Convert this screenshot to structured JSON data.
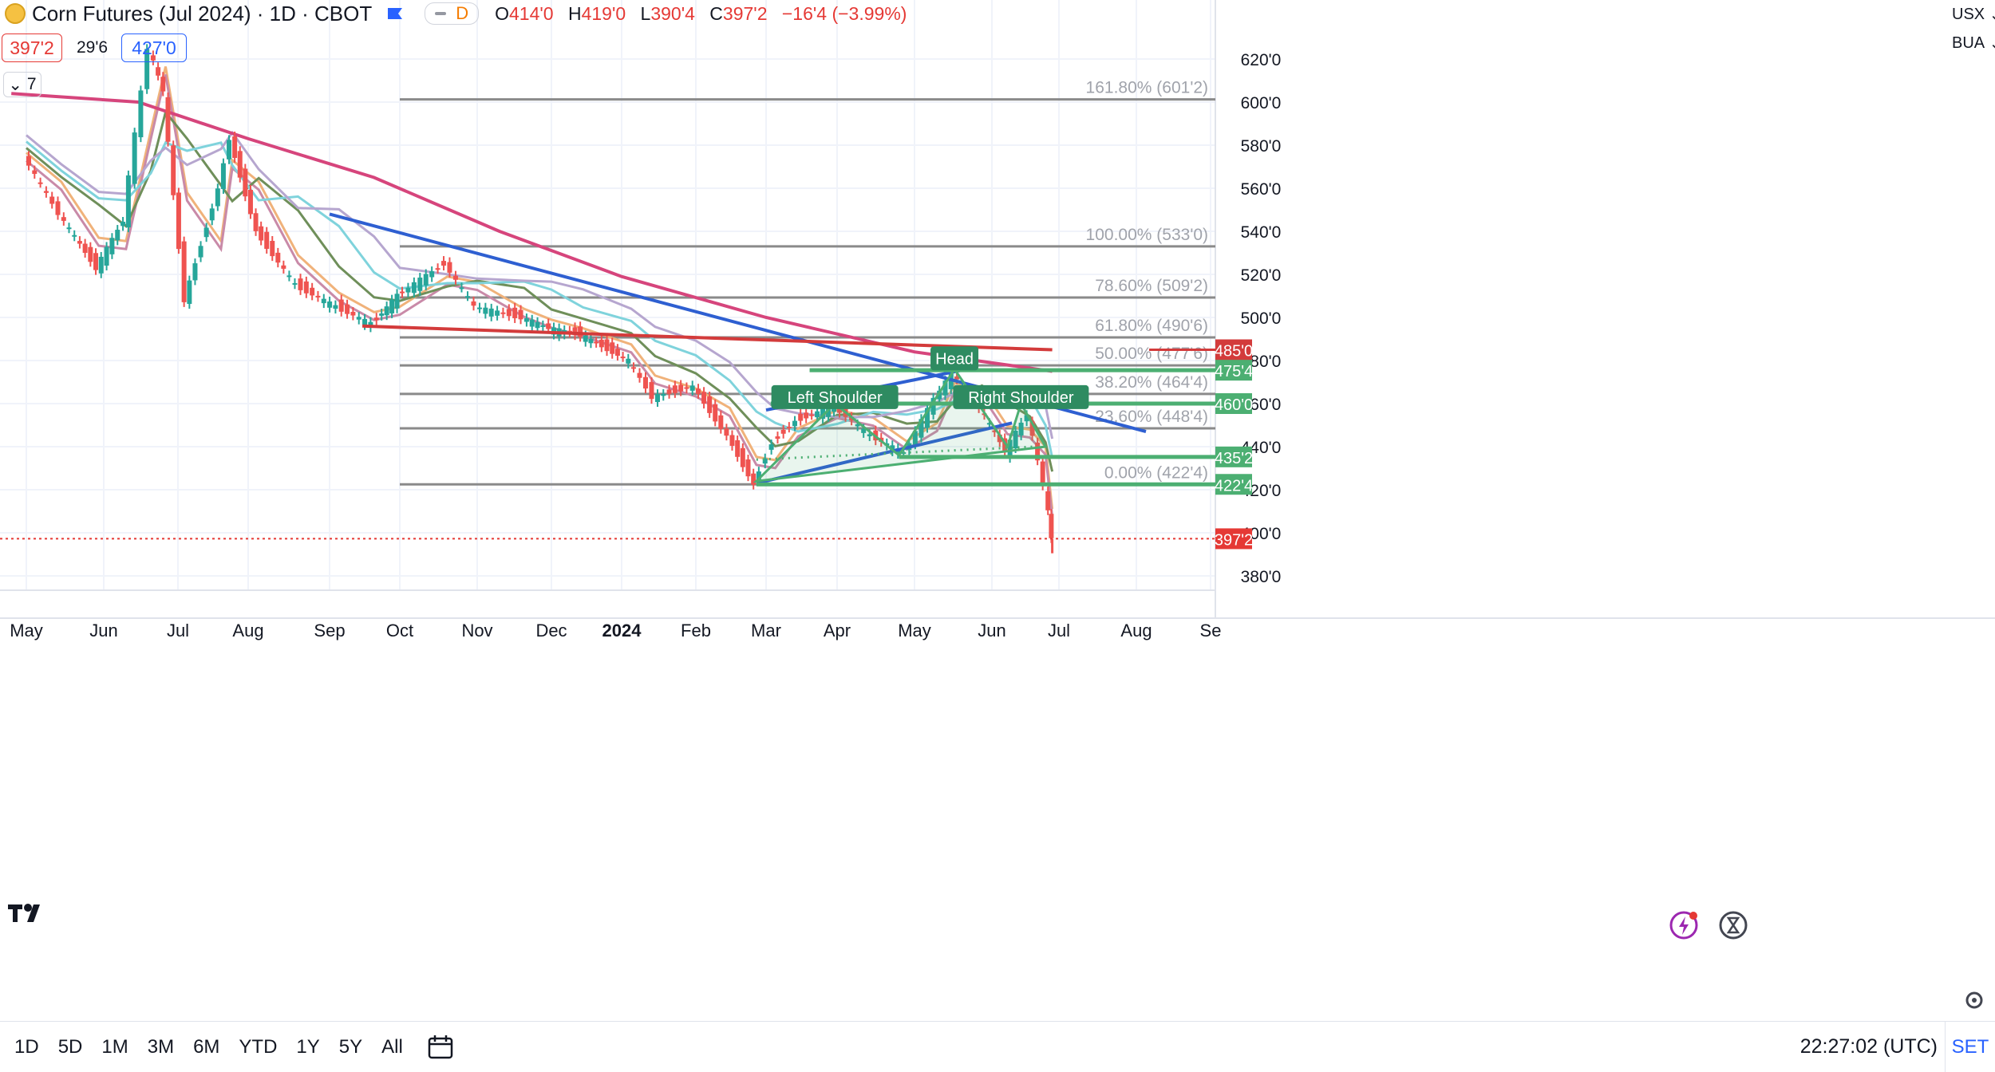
{
  "header": {
    "title": "Corn Futures (Jul 2024) · 1D · CBOT",
    "delay_badge": "D",
    "ohlc": {
      "o_label": "O",
      "o": "414'0",
      "h_label": "H",
      "h": "419'0",
      "l_label": "L",
      "l": "390'4",
      "c_label": "C",
      "c": "397'2",
      "chg": "−16'4 (−3.99%)"
    },
    "sell_price": "397'2",
    "spread": "29'6",
    "buy_price": "427'0",
    "indicators_count": "7"
  },
  "right_toolbar": {
    "currency": "USX",
    "unit": "BUA"
  },
  "bottom_bar": {
    "ranges": [
      "1D",
      "5D",
      "1M",
      "3M",
      "6M",
      "YTD",
      "1Y",
      "5Y",
      "All"
    ],
    "clock": "22:27:02 (UTC)",
    "session": "SET"
  },
  "colors": {
    "up": "#26a69a",
    "down": "#ef5350",
    "ma200": "#d6457c",
    "trend_blue": "#2e5fd1",
    "trend_red": "#d33b3b",
    "fib": "#8a8a8a",
    "pattern": "#4caf72",
    "last_price": "#e53935"
  },
  "chart_data": {
    "type": "candlestick",
    "symbol": "Corn Futures (Jul 2024)",
    "timeframe": "1D",
    "exchange": "CBOT",
    "x_ticks": [
      "May",
      "Jun",
      "Jul",
      "Aug",
      "Sep",
      "Oct",
      "Nov",
      "Dec",
      "2024",
      "Feb",
      "Mar",
      "Apr",
      "May",
      "Jun",
      "Jul",
      "Aug",
      "Se"
    ],
    "y_ticks": [
      "620'0",
      "600'0",
      "580'0",
      "560'0",
      "540'0",
      "520'0",
      "500'0",
      "480'0",
      "460'0",
      "440'0",
      "420'0",
      "400'0",
      "380'0"
    ],
    "ylim": [
      370,
      640
    ],
    "price_series": [
      {
        "date": "2023-05-01",
        "close": 575
      },
      {
        "date": "2023-05-15",
        "close": 548
      },
      {
        "date": "2023-05-30",
        "close": 523
      },
      {
        "date": "2023-06-10",
        "close": 545
      },
      {
        "date": "2023-06-20",
        "close": 625
      },
      {
        "date": "2023-06-26",
        "close": 605
      },
      {
        "date": "2023-07-05",
        "close": 508
      },
      {
        "date": "2023-07-20",
        "close": 560
      },
      {
        "date": "2023-07-25",
        "close": 583
      },
      {
        "date": "2023-08-05",
        "close": 540
      },
      {
        "date": "2023-08-20",
        "close": 515
      },
      {
        "date": "2023-09-05",
        "close": 505
      },
      {
        "date": "2023-09-20",
        "close": 497
      },
      {
        "date": "2023-10-01",
        "close": 510
      },
      {
        "date": "2023-10-20",
        "close": 525
      },
      {
        "date": "2023-11-01",
        "close": 505
      },
      {
        "date": "2023-11-20",
        "close": 500
      },
      {
        "date": "2023-12-01",
        "close": 495
      },
      {
        "date": "2023-12-15",
        "close": 492
      },
      {
        "date": "2024-01-05",
        "close": 480
      },
      {
        "date": "2024-01-15",
        "close": 463
      },
      {
        "date": "2024-02-01",
        "close": 468
      },
      {
        "date": "2024-02-15",
        "close": 445
      },
      {
        "date": "2024-02-26",
        "close": 422.5
      },
      {
        "date": "2024-03-05",
        "close": 442
      },
      {
        "date": "2024-03-15",
        "close": 452
      },
      {
        "date": "2024-04-01",
        "close": 459
      },
      {
        "date": "2024-04-15",
        "close": 445
      },
      {
        "date": "2024-04-28",
        "close": 437
      },
      {
        "date": "2024-05-10",
        "close": 462
      },
      {
        "date": "2024-05-17",
        "close": 474
      },
      {
        "date": "2024-05-28",
        "close": 458
      },
      {
        "date": "2024-06-08",
        "close": 438
      },
      {
        "date": "2024-06-18",
        "close": 455
      },
      {
        "date": "2024-06-25",
        "close": 422
      },
      {
        "date": "2024-06-28",
        "close": 397.25
      }
    ],
    "moving_average_200": [
      {
        "date": "2023-04-25",
        "value": 604
      },
      {
        "date": "2023-06-15",
        "value": 600
      },
      {
        "date": "2023-08-01",
        "value": 583
      },
      {
        "date": "2023-09-20",
        "value": 565
      },
      {
        "date": "2023-11-10",
        "value": 540
      },
      {
        "date": "2024-01-01",
        "value": 519
      },
      {
        "date": "2024-03-01",
        "value": 500
      },
      {
        "date": "2024-05-01",
        "value": 484
      },
      {
        "date": "2024-06-28",
        "value": 475
      }
    ],
    "fibonacci_levels": [
      {
        "label": "161.80% (601'2)",
        "value": 601.25
      },
      {
        "label": "100.00% (533'0)",
        "value": 533
      },
      {
        "label": "78.60% (509'2)",
        "value": 509.25
      },
      {
        "label": "61.80% (490'6)",
        "value": 490.75
      },
      {
        "label": "50.00% (477'6)",
        "value": 477.75
      },
      {
        "label": "38.20% (464'4)",
        "value": 464.5
      },
      {
        "label": "23.60% (448'4)",
        "value": 448.5
      },
      {
        "label": "0.00% (422'4)",
        "value": 422.5
      }
    ],
    "price_badges": [
      {
        "label": "485'0",
        "value": 485,
        "kind": "red"
      },
      {
        "label": "475'4",
        "value": 475.5,
        "kind": "green"
      },
      {
        "label": "460'0",
        "value": 460,
        "kind": "green"
      },
      {
        "label": "435'2",
        "value": 435.25,
        "kind": "green"
      },
      {
        "label": "422'4",
        "value": 422.5,
        "kind": "green"
      },
      {
        "label": "397'2",
        "value": 397.25,
        "kind": "last"
      }
    ],
    "annotations": [
      {
        "text": "Head",
        "date": "2024-05-17",
        "value": 481
      },
      {
        "text": "Left Shoulder",
        "date": "2024-03-31",
        "value": 463
      },
      {
        "text": "Right Shoulder",
        "date": "2024-06-14",
        "value": 463
      }
    ],
    "trendlines": [
      {
        "name": "blue-downtrend",
        "from": {
          "date": "2023-09-01",
          "value": 548
        },
        "to": {
          "date": "2024-08-05",
          "value": 447
        }
      },
      {
        "name": "red-resistance",
        "from": {
          "date": "2023-09-15",
          "value": 496
        },
        "to": {
          "date": "2024-06-28",
          "value": 485
        }
      },
      {
        "name": "blue-uptrend-lower",
        "from": {
          "date": "2024-02-26",
          "value": 423
        },
        "to": {
          "date": "2024-06-10",
          "value": 451
        }
      },
      {
        "name": "blue-uptrend-upper",
        "from": {
          "date": "2024-03-01",
          "value": 457
        },
        "to": {
          "date": "2024-05-22",
          "value": 476
        }
      }
    ],
    "support_resistance_lines": [
      {
        "from": "2024-03-03",
        "to": "2024-06-28",
        "value": 460
      },
      {
        "from": "2024-03-20",
        "to": "2024-06-28",
        "value": 475.5
      },
      {
        "from": "2024-04-25",
        "to": "2024-06-28",
        "value": 435.25
      },
      {
        "from": "2024-02-26",
        "to": "2024-06-28",
        "value": 422.5
      }
    ],
    "grid": true,
    "legend": "none"
  }
}
